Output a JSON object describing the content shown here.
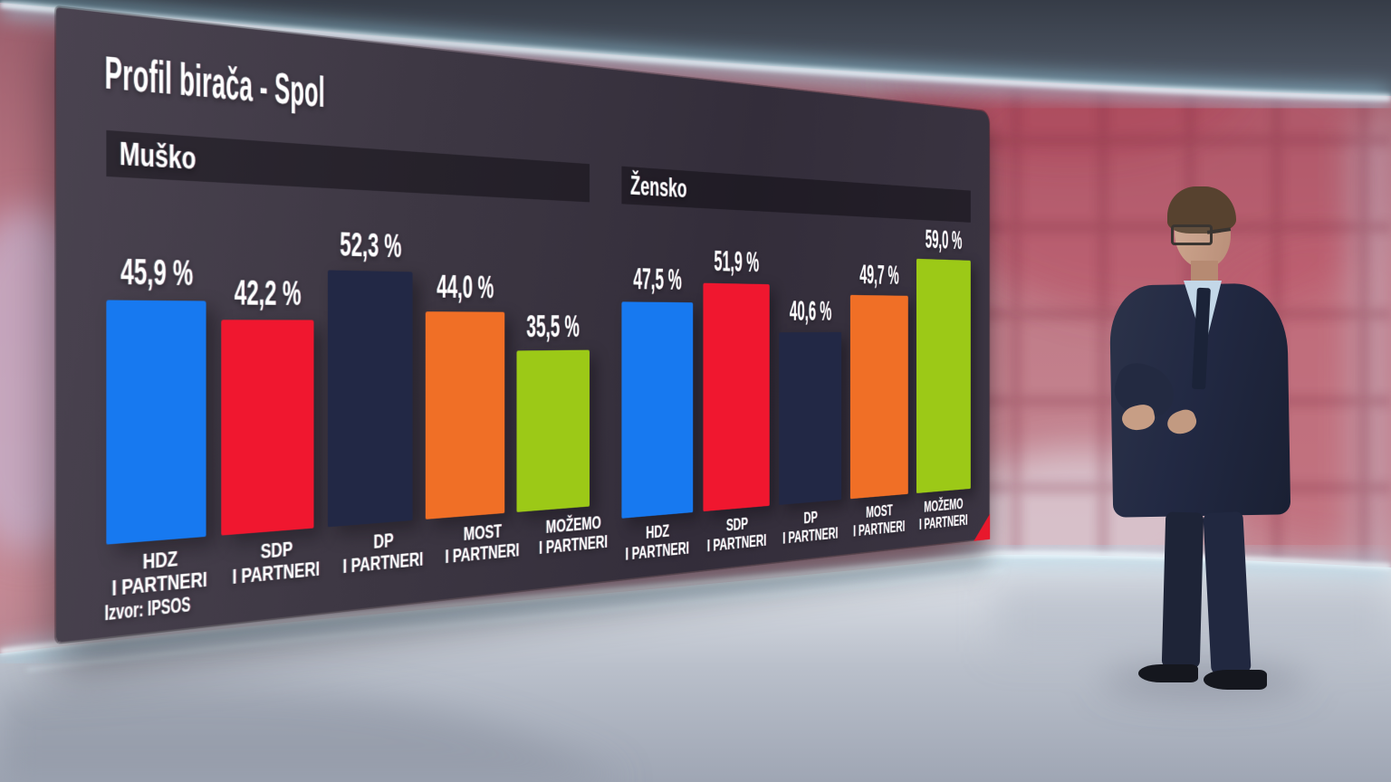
{
  "chart_data": {
    "type": "bar",
    "title": "Profil birača - Spol",
    "source": "Izvor: IPSOS",
    "unit": "%",
    "categories": [
      "HDZ I PARTNERI",
      "SDP I PARTNERI",
      "DP I PARTNERI",
      "MOST I PARTNERI",
      "MOŽEMO I PARTNERI"
    ],
    "category_lines": [
      [
        "HDZ",
        "I PARTNERI"
      ],
      [
        "SDP",
        "I PARTNERI"
      ],
      [
        "DP",
        "I PARTNERI"
      ],
      [
        "MOST",
        "I PARTNERI"
      ],
      [
        "MOŽEMO",
        "I PARTNERI"
      ]
    ],
    "bar_colors": [
      "#1779f0",
      "#f0172f",
      "#222845",
      "#f06f26",
      "#9cc917"
    ],
    "series": [
      {
        "name": "Muško",
        "values": [
          45.9,
          42.2,
          52.3,
          44.0,
          35.5
        ],
        "value_labels": [
          "45,9 %",
          "42,2 %",
          "52,3 %",
          "44,0 %",
          "35,5 %"
        ]
      },
      {
        "name": "Žensko",
        "values": [
          47.5,
          51.9,
          40.6,
          49.7,
          59.0
        ],
        "value_labels": [
          "47,5 %",
          "51,9 %",
          "40,6 %",
          "49,7 %",
          "59,0 %"
        ]
      }
    ],
    "ylim": [
      0,
      65
    ],
    "grid": false,
    "legend_position": "none"
  },
  "colors": {
    "board_background": "#3a3440",
    "header_strip": "#262028",
    "corner_accent": "#e8182c",
    "text": "#ffffff"
  }
}
